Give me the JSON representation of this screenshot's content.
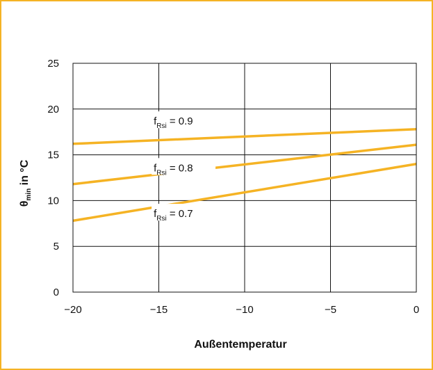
{
  "chart_data": {
    "type": "line",
    "xlabel": "Außentemperatur",
    "ylabel": {
      "prefix": "θ",
      "sub": "min",
      "suffix": " in °C"
    },
    "xlim": [
      -20,
      0
    ],
    "ylim": [
      0,
      25
    ],
    "x_ticks": [
      -20,
      -15,
      -10,
      -5,
      0
    ],
    "y_ticks": [
      0,
      5,
      10,
      15,
      20,
      25
    ],
    "x_tick_labels": [
      "−20",
      "−15",
      "−10",
      "−5",
      "0"
    ],
    "y_tick_labels": [
      "0",
      "5",
      "10",
      "15",
      "20",
      "25"
    ],
    "grid": true,
    "line_color": "#f5b324",
    "series": [
      {
        "name": "f_Rsi = 0.9",
        "label_main": "f",
        "label_sub": "Rsi",
        "label_value": " = 0.9",
        "x": [
          -20,
          0
        ],
        "y": [
          16.2,
          17.8
        ]
      },
      {
        "name": "f_Rsi = 0.8",
        "label_main": "f",
        "label_sub": "Rsi",
        "label_value": " = 0.8",
        "x": [
          -20,
          0
        ],
        "y": [
          11.8,
          16.1
        ]
      },
      {
        "name": "f_Rsi = 0.7",
        "label_main": "f",
        "label_sub": "Rsi",
        "label_value": " = 0.7",
        "x": [
          -20,
          0
        ],
        "y": [
          7.8,
          14.0
        ]
      }
    ]
  }
}
